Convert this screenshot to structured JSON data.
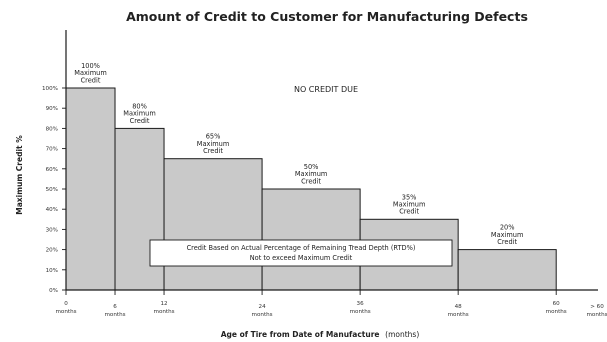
{
  "chart_data": {
    "type": "bar",
    "title": "Amount of Credit to Customer for Manufacturing Defects",
    "ylabel": "Maximum Credit %",
    "xlabel": "Age of Tire from Date of Manufacture",
    "xlabel_unit": "(months)",
    "ylim": [
      0,
      100
    ],
    "xlim": [
      0,
      60
    ],
    "y_ticks": [
      "0%",
      "10%",
      "20%",
      "30%",
      "40%",
      "50%",
      "60%",
      "70%",
      "80%",
      "90%",
      "100%"
    ],
    "x_ticks": [
      {
        "value": 0,
        "label": [
          "0",
          "months"
        ]
      },
      {
        "value": 6,
        "label": [
          "6",
          "months"
        ]
      },
      {
        "value": 12,
        "label": [
          "12",
          "months"
        ]
      },
      {
        "value": 24,
        "label": [
          "24",
          "months"
        ]
      },
      {
        "value": 36,
        "label": [
          "36",
          "months"
        ]
      },
      {
        "value": 48,
        "label": [
          "48",
          "months"
        ]
      },
      {
        "value": 60,
        "label": [
          "60",
          "months"
        ]
      },
      {
        "value": 66,
        "label": [
          "> 60",
          "months"
        ]
      }
    ],
    "bars": [
      {
        "x_start": 0,
        "x_end": 6,
        "value": 100,
        "label": [
          "100%",
          "Maximum",
          "Credit"
        ]
      },
      {
        "x_start": 6,
        "x_end": 12,
        "value": 80,
        "label": [
          "80%",
          "Maximum",
          "Credit"
        ]
      },
      {
        "x_start": 12,
        "x_end": 24,
        "value": 65,
        "label": [
          "65%",
          "Maximum",
          "Credit"
        ]
      },
      {
        "x_start": 24,
        "x_end": 36,
        "value": 50,
        "label": [
          "50%",
          "Maximum",
          "Credit"
        ]
      },
      {
        "x_start": 36,
        "x_end": 48,
        "value": 35,
        "label": [
          "35%",
          "Maximum",
          "Credit"
        ]
      },
      {
        "x_start": 48,
        "x_end": 60,
        "value": 20,
        "label": [
          "20%",
          "Maximum",
          "Credit"
        ]
      }
    ],
    "annotation": "NO CREDIT DUE",
    "note": [
      "Credit Based on Actual Percentage of Remaining Tread Depth (RTD%)",
      "Not to exceed Maximum Credit"
    ],
    "colors": {
      "bar_fill": "#c9c9c9",
      "outline": "#1a1a1a"
    },
    "grid": false
  }
}
